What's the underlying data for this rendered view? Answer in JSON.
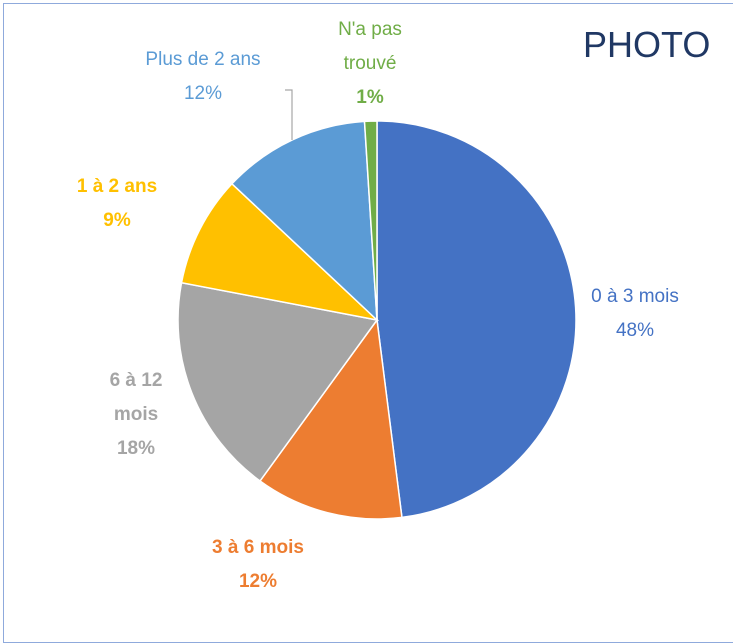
{
  "chart_data": {
    "type": "pie",
    "title": "PHOTO",
    "categories": [
      "0 à 3 mois",
      "3 à 6 mois",
      "6 à 12 mois",
      "1 à 2 ans",
      "Plus de 2 ans",
      "N'a pas trouvé"
    ],
    "values": [
      48,
      12,
      18,
      9,
      12,
      1
    ],
    "value_labels": [
      "48%",
      "12%",
      "18%",
      "9%",
      "12%",
      "1%"
    ],
    "colors": [
      "#4472c4",
      "#ed7d31",
      "#a5a5a5",
      "#ffc000",
      "#5b9bd5",
      "#70ad47"
    ]
  }
}
